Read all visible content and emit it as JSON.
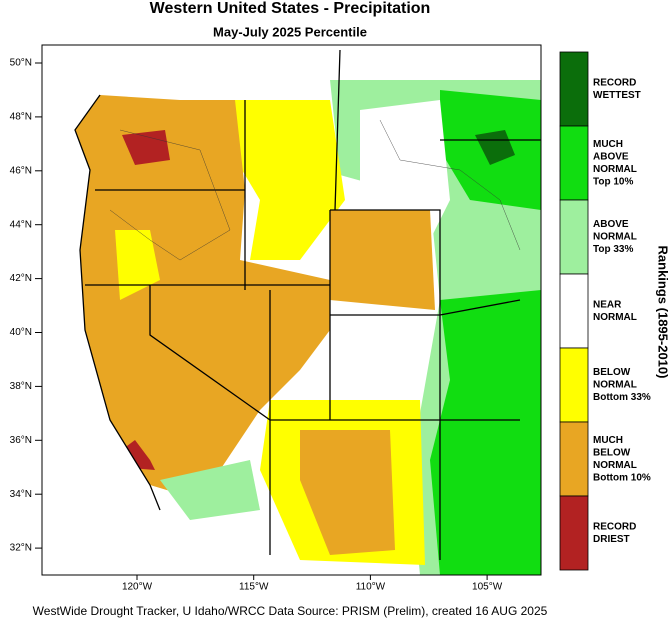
{
  "header": {
    "title": "Western United States - Precipitation",
    "subtitle": "May-July 2025 Percentile"
  },
  "map": {
    "lat_labels": [
      "50°N",
      "48°N",
      "46°N",
      "44°N",
      "42°N",
      "40°N",
      "38°N",
      "36°N",
      "34°N",
      "32°N"
    ],
    "lon_labels": [
      "120°W",
      "115°W",
      "110°W",
      "105°W"
    ]
  },
  "legend": {
    "title": "Rankings (1895-2010)",
    "items": [
      {
        "color": "#0b6e0b",
        "lines": [
          "RECORD",
          "WETTEST"
        ]
      },
      {
        "color": "#11dd11",
        "lines": [
          "MUCH",
          "ABOVE",
          "NORMAL",
          "Top 10%"
        ]
      },
      {
        "color": "#9eef9e",
        "lines": [
          "ABOVE",
          "NORMAL",
          "Top 33%"
        ]
      },
      {
        "color": "#ffffff",
        "lines": [
          "NEAR",
          "NORMAL"
        ]
      },
      {
        "color": "#ffff00",
        "lines": [
          "BELOW",
          "NORMAL",
          "Bottom 33%"
        ]
      },
      {
        "color": "#e8a623",
        "lines": [
          "MUCH",
          "BELOW",
          "NORMAL",
          "Bottom 10%"
        ]
      },
      {
        "color": "#b22222",
        "lines": [
          "RECORD",
          "DRIEST"
        ]
      }
    ]
  },
  "footer": {
    "credit": "WestWide Drought Tracker, U Idaho/WRCC Data Source: PRISM (Prelim), created 16 AUG 2025"
  }
}
